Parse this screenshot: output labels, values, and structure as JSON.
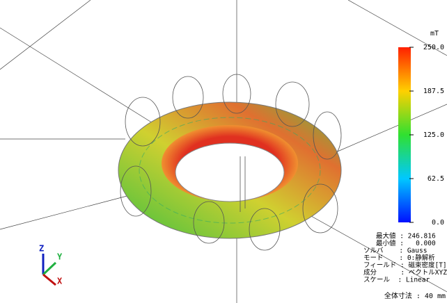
{
  "colorbar": {
    "unit": "mT",
    "lim": [
      0,
      250
    ],
    "ticks": [
      {
        "value": 250,
        "label": "250.0"
      },
      {
        "value": 187.5,
        "label": "187.5"
      },
      {
        "value": 125,
        "label": "125.0"
      },
      62.5,
      {
        "value": 0,
        "label": "0.0"
      }
    ]
  },
  "info": [
    "最大値 : 246.816",
    "最小値 :   0.000",
    "ソルバ    : Gauss",
    "モード    : 0:静解析",
    "フィールド : 磁束密度[T]",
    "成分      : ベクトルXYZ",
    "スケール  : Linear"
  ],
  "size_note": "全体寸法 : 40 mm",
  "axes": {
    "z": "Z",
    "y": "Y",
    "x": "X"
  }
}
